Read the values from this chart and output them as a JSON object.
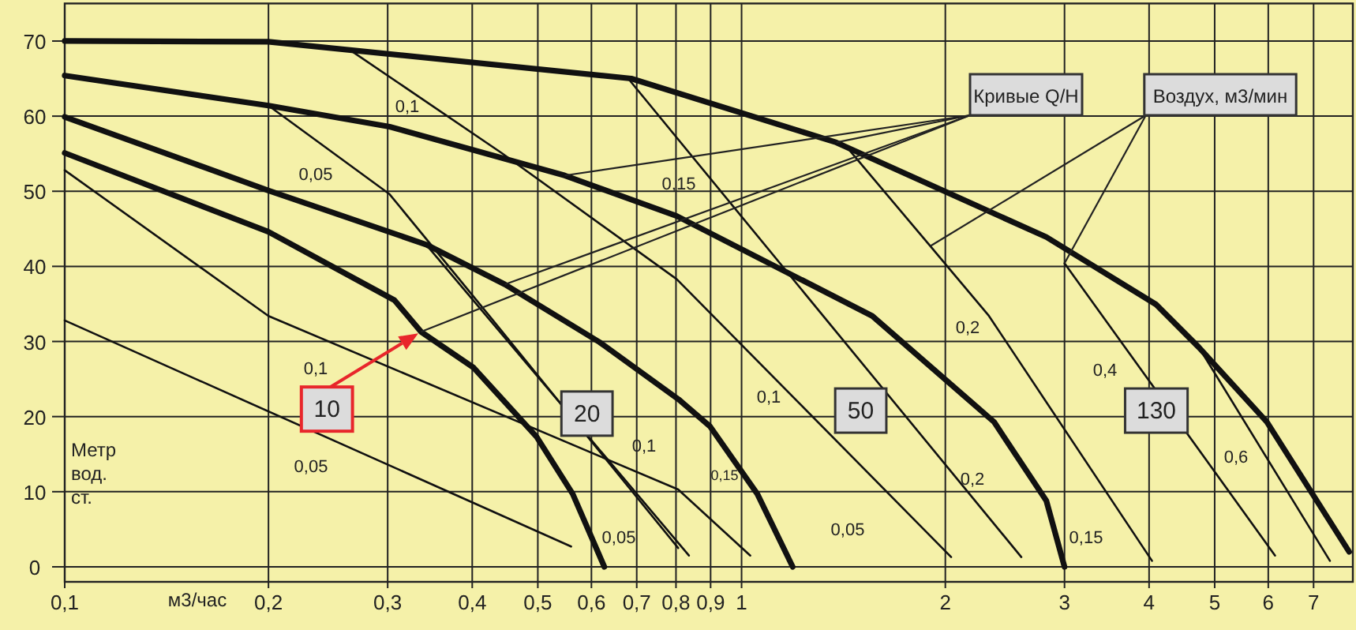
{
  "chart_data": {
    "type": "line",
    "xlabel": "м3/час",
    "ylabel": "Метр вод. ст.",
    "log": "x",
    "grid": true,
    "xlim": [
      0.1,
      8
    ],
    "ylim": [
      -2,
      75
    ],
    "xticks": [
      {
        "value": 0.1,
        "label": "0,1"
      },
      {
        "value": 0.2,
        "label": "0,2"
      },
      {
        "value": 0.3,
        "label": "0,3"
      },
      {
        "value": 0.4,
        "label": "0,4"
      },
      {
        "value": 0.5,
        "label": "0,5"
      },
      {
        "value": 0.6,
        "label": "0,6"
      },
      {
        "value": 0.7,
        "label": "0,7"
      },
      {
        "value": 0.8,
        "label": "0,8"
      },
      {
        "value": 0.9,
        "label": "0,9"
      },
      1,
      2,
      3,
      4,
      5,
      6,
      7
    ],
    "yticks": [
      0,
      10,
      20,
      30,
      40,
      50,
      60,
      70
    ],
    "series": [
      {
        "color": "#111111",
        "x": [
          0.1,
          0.2,
          0.307,
          0.336,
          0.402,
          0.498,
          0.563,
          0.627
        ],
        "values": [
          55.1,
          44.6,
          35.5,
          31.3,
          26.5,
          17.3,
          9.7,
          0
        ]
      },
      {
        "color": "#111111",
        "x": [
          0.1,
          0.2,
          0.342,
          0.447,
          0.617,
          0.807,
          0.898,
          1.055,
          1.19
        ],
        "values": [
          59.9,
          50.1,
          42.9,
          37.6,
          29.9,
          22.3,
          18.7,
          9.7,
          0
        ]
      },
      {
        "color": "#111111",
        "x": [
          0.1,
          0.2,
          0.302,
          0.548,
          0.802,
          1.56,
          2.36,
          2.82,
          3.0
        ],
        "values": [
          65.4,
          61.4,
          58.6,
          52.1,
          46.7,
          33.4,
          19.3,
          8.8,
          0
        ]
      },
      {
        "color": "#111111",
        "x": [
          0.1,
          0.2,
          0.687,
          1.38,
          2.82,
          4.1,
          4.74,
          5.97,
          7.9
        ],
        "values": [
          70,
          69.9,
          65,
          56.5,
          43.9,
          34.9,
          29.2,
          19.3,
          2
        ]
      },
      {
        "color": "#111111",
        "x": [
          0.1,
          0.56
        ],
        "values": [
          32.8,
          2.7
        ]
      },
      {
        "color": "#111111",
        "x": [
          0.1,
          0.2,
          0.806,
          1.03
        ],
        "values": [
          52.8,
          33.4,
          10.3,
          1.5
        ]
      },
      {
        "color": "#111111",
        "x": [
          0.2,
          0.302,
          0.424,
          0.806
        ],
        "values": [
          61.4,
          49.6,
          33.4,
          2.5
        ]
      },
      {
        "color": "#111111",
        "x": [
          0.342,
          0.836
        ],
        "values": [
          42.9,
          1.5
        ]
      },
      {
        "color": "#111111",
        "x": [
          0.265,
          0.442,
          0.802,
          2.04
        ],
        "values": [
          68.7,
          55.1,
          38.3,
          1.3
        ]
      },
      {
        "color": "#111111",
        "x": [
          0.68,
          2.59
        ],
        "values": [
          65,
          1.3
        ]
      },
      {
        "color": "#111111",
        "x": [
          1.43,
          1.9,
          2.32,
          4.04
        ],
        "values": [
          55.9,
          42.7,
          33.4,
          0.8
        ]
      },
      {
        "color": "#111111",
        "x": [
          3.0,
          6.14
        ],
        "values": [
          40.4,
          1.5
        ]
      },
      {
        "color": "#111111",
        "x": [
          4.74,
          7.4
        ],
        "values": [
          29.2,
          0.8
        ]
      }
    ],
    "annotations": [
      {
        "text": "10",
        "x": 0.244,
        "y": 21
      },
      {
        "text": "20",
        "x": 0.591,
        "y": 20.4
      },
      {
        "text": "50",
        "x": 1.5,
        "y": 20.8
      },
      {
        "text": "130",
        "x": 4.1,
        "y": 20.8
      },
      {
        "text": "Кривые Q/H",
        "x": 1.38,
        "y": 56.5
      },
      {
        "text": "Воздух, м3/мин",
        "x": 1.9,
        "y": 42.7
      },
      "0,1",
      "0,05",
      "0,15",
      "0,1",
      "0,05",
      "0,1",
      "0,05",
      "0,15",
      "0,1",
      "0,05",
      "0,2",
      "0,2",
      "0,15",
      "0,4",
      "0,6"
    ]
  }
}
